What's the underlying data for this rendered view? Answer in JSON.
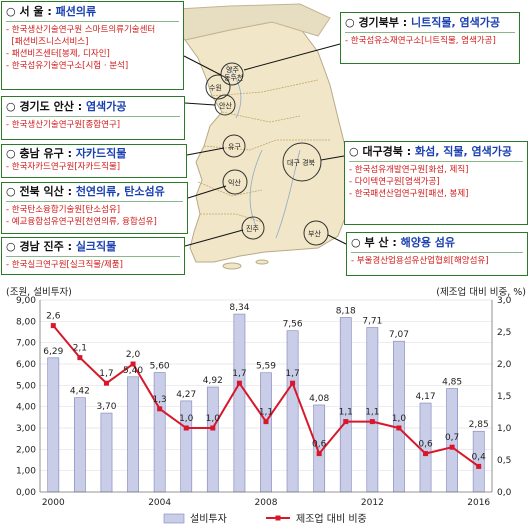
{
  "regions": [
    {
      "id": "seoul",
      "head": "서  울",
      "sep": " : ",
      "highlight": "패션의류",
      "items": [
        "한국생산기술연구원 스마트의류기술센터",
        "[패션비즈니스서비스]",
        "패션비즈센터[봉제, 디자인]",
        "한국섬유기술연구소[시험 · 분석]"
      ]
    },
    {
      "id": "gyeonggi-north",
      "head": "경기북부",
      "sep": " : ",
      "highlight": "니트직물, 염색가공",
      "items": [
        "한국섬유소재연구소[니트직물, 염색가공]"
      ]
    },
    {
      "id": "ansan",
      "head": "경기도 안산",
      "sep": " : ",
      "highlight": "염색가공",
      "items": [
        "한국생산기술연구원[종합연구]"
      ]
    },
    {
      "id": "yugu",
      "head": "충남 유구",
      "sep": " : ",
      "highlight": "자카드직물",
      "items": [
        "한국자카드연구원[자카드직물]"
      ]
    },
    {
      "id": "iksan",
      "head": "전북 익산",
      "sep": " : ",
      "highlight": "천연의류, 탄소섬유",
      "items": [
        "한국탄소융합기술원[탄소섬유]",
        "예교융합섬유연구원[천연의류, 융합섬유]"
      ]
    },
    {
      "id": "jinju",
      "head": "경남 진주",
      "sep": " : ",
      "highlight": "실크직물",
      "items": [
        "한국실크연구원[실크직물/제품]"
      ]
    },
    {
      "id": "daegu",
      "head": "대구경북",
      "sep": " : ",
      "highlight": "화섬, 직물, 염색가공",
      "items": [
        "한국섬유개발연구원[화섬, 제직]",
        "다이텍연구원[염색가공]",
        "한국패션산업연구원[패션, 봉제]"
      ]
    },
    {
      "id": "busan",
      "head": "부  산",
      "sep": " : ",
      "highlight": "해양용 섬유",
      "items": [
        "부울경산업용섬유산업협회[해양섬유]"
      ]
    }
  ],
  "map_labels": [
    "양주",
    "동두천",
    "수원",
    "안산",
    "유구",
    "익산",
    "대구 경북",
    "진주",
    "부산"
  ],
  "chart_data": {
    "type": "bar+line",
    "left_axis_title": "(조원, 설비투자)",
    "right_axis_title": "(제조업 대비 비중, %)",
    "x": [
      2000,
      2001,
      2002,
      2003,
      2004,
      2005,
      2006,
      2007,
      2008,
      2009,
      2010,
      2011,
      2012,
      2013,
      2014,
      2015,
      2016
    ],
    "x_tick_labels": [
      "2000",
      "2004",
      "2008",
      "2012",
      "2016"
    ],
    "x_tick_values": [
      2000,
      2004,
      2008,
      2012,
      2016
    ],
    "series": [
      {
        "name": "설비투자",
        "type": "bar",
        "axis": "left",
        "color": "#c9cde8",
        "values": [
          6.29,
          4.42,
          3.7,
          5.4,
          5.6,
          4.27,
          4.92,
          8.34,
          5.59,
          7.56,
          4.08,
          8.18,
          7.71,
          7.07,
          4.17,
          4.85,
          2.85
        ],
        "labels": [
          "6,29",
          "4,42",
          "3,70",
          "5,40",
          "5,60",
          "4,27",
          "4,92",
          "8,34",
          "5,59",
          "7,56",
          "4,08",
          "8,18",
          "7,71",
          "7,07",
          "4,17",
          "4,85",
          "2,85"
        ]
      },
      {
        "name": "제조업 대비 비중",
        "type": "line",
        "axis": "right",
        "color": "#d8172a",
        "values": [
          2.6,
          2.1,
          1.7,
          2.0,
          1.3,
          1.0,
          1.0,
          1.7,
          1.1,
          1.7,
          0.6,
          1.1,
          1.1,
          1.0,
          0.6,
          0.7,
          0.4
        ],
        "labels": [
          "2,6",
          "2,1",
          "1,7",
          "2,0",
          "1,3",
          "1,0",
          "1,0",
          "1,7",
          "1,1",
          "1,7",
          "0,6",
          "1,1",
          "1,1",
          "1,0",
          "0,6",
          "0,7",
          "0,4"
        ]
      }
    ],
    "y_left": {
      "min": 0,
      "max": 9,
      "ticks": [
        "0,00",
        "1,00",
        "2,00",
        "3,00",
        "4,00",
        "5,00",
        "6,00",
        "7,00",
        "8,00",
        "9,00"
      ]
    },
    "y_right": {
      "min": 0,
      "max": 3,
      "ticks": [
        "0,0",
        "0,5",
        "1,0",
        "1,5",
        "2,0",
        "2,5",
        "3,0"
      ]
    },
    "legend": [
      "설비투자",
      "제조업 대비 비중"
    ],
    "legend_position": "bottom"
  }
}
